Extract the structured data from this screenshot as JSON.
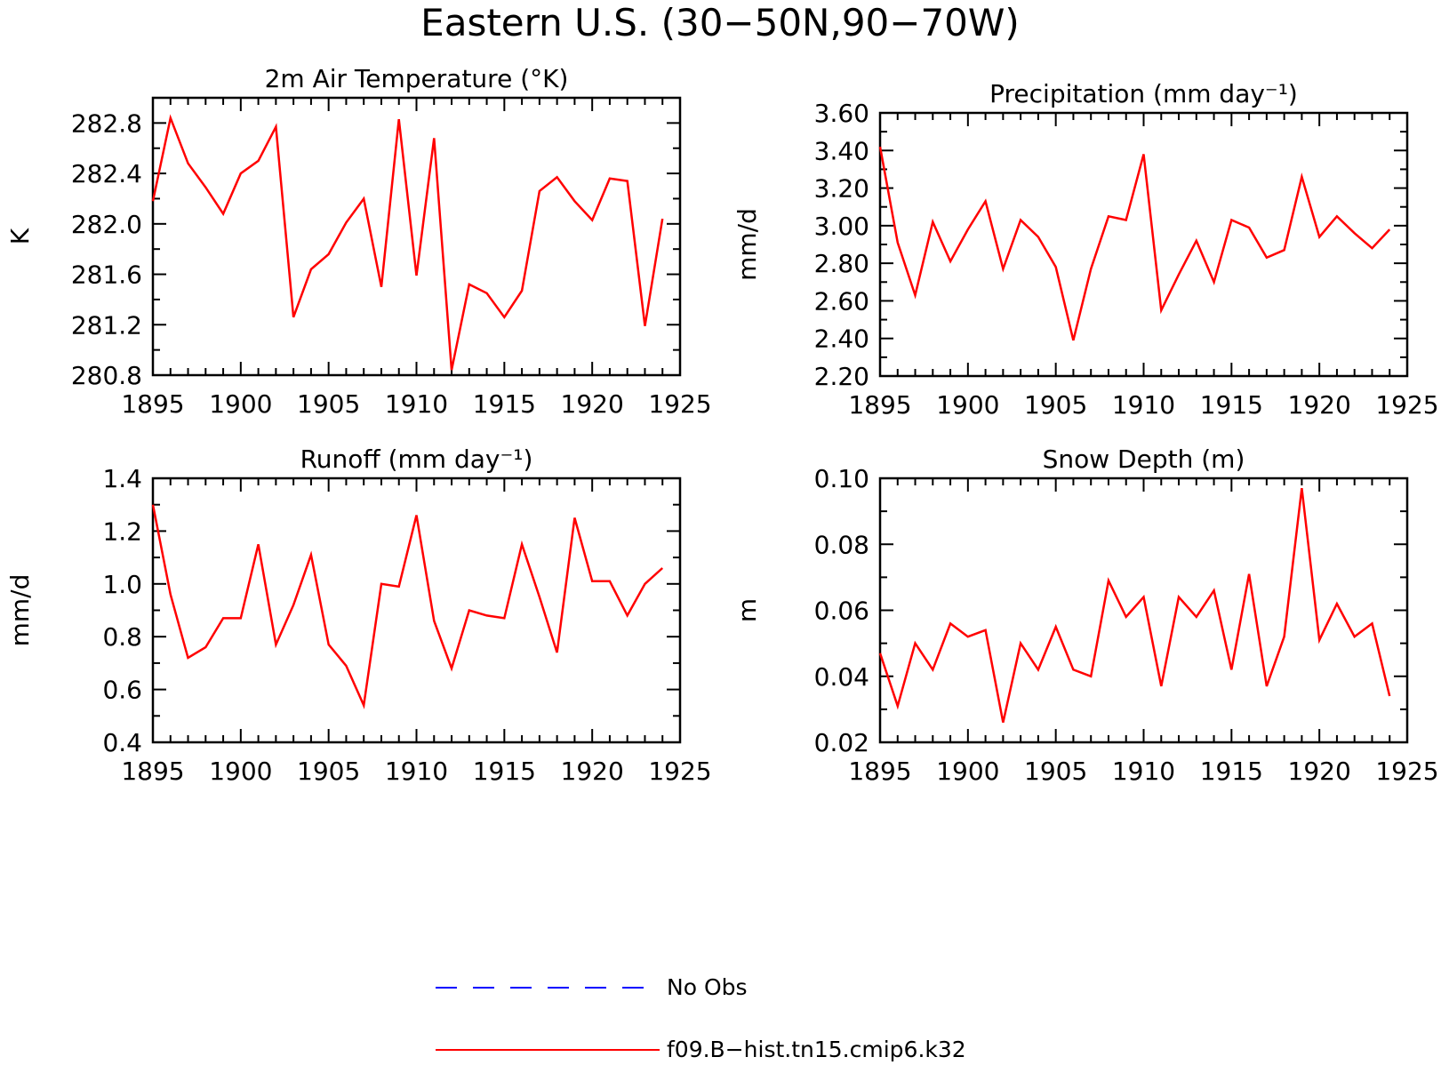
{
  "title": "Eastern U.S. (30−50N,90−70W)",
  "legend": {
    "entries": [
      {
        "label": "No Obs",
        "color": "#0000ff",
        "style": "dashed"
      },
      {
        "label": "f09.B−hist.tn15.cmip6.k32",
        "color": "#ff0000",
        "style": "solid"
      }
    ]
  },
  "chart_data": [
    {
      "type": "line",
      "title": "2m Air Temperature (°K)",
      "ylabel": "K",
      "xlim": [
        1895,
        1925
      ],
      "ylim": [
        280.8,
        283.0
      ],
      "xticks": [
        "1895",
        "1900",
        "1905",
        "1910",
        "1915",
        "1920",
        "1925"
      ],
      "yticks": [
        "280.8",
        "281.2",
        "281.6",
        "282.0",
        "282.4",
        "282.8"
      ],
      "grid": false,
      "x": [
        1895,
        1896,
        1897,
        1898,
        1899,
        1900,
        1901,
        1902,
        1903,
        1904,
        1905,
        1906,
        1907,
        1908,
        1909,
        1910,
        1911,
        1912,
        1913,
        1914,
        1915,
        1916,
        1917,
        1918,
        1919,
        1920,
        1921,
        1922,
        1923,
        1924
      ],
      "series": [
        {
          "name": "f09.B−hist.tn15.cmip6.k32",
          "color": "#ff0000",
          "values": [
            282.18,
            282.84,
            282.48,
            282.29,
            282.08,
            282.4,
            282.5,
            282.77,
            281.26,
            281.64,
            281.76,
            282.01,
            282.2,
            281.5,
            282.83,
            281.59,
            282.68,
            280.84,
            281.52,
            281.45,
            281.26,
            281.47,
            282.26,
            282.37,
            282.18,
            282.03,
            282.36,
            282.34,
            281.19,
            282.04
          ]
        }
      ]
    },
    {
      "type": "line",
      "title": "Precipitation (mm day⁻¹)",
      "ylabel": "mm/d",
      "xlim": [
        1895,
        1925
      ],
      "ylim": [
        2.2,
        3.6
      ],
      "xticks": [
        "1895",
        "1900",
        "1905",
        "1910",
        "1915",
        "1920",
        "1925"
      ],
      "yticks": [
        "2.20",
        "2.40",
        "2.60",
        "2.80",
        "3.00",
        "3.20",
        "3.40",
        "3.60"
      ],
      "grid": false,
      "x": [
        1895,
        1896,
        1897,
        1898,
        1899,
        1900,
        1901,
        1902,
        1903,
        1904,
        1905,
        1906,
        1907,
        1908,
        1909,
        1910,
        1911,
        1912,
        1913,
        1914,
        1915,
        1916,
        1917,
        1918,
        1919,
        1920,
        1921,
        1922,
        1923,
        1924
      ],
      "series": [
        {
          "name": "f09.B−hist.tn15.cmip6.k32",
          "color": "#ff0000",
          "values": [
            3.42,
            2.91,
            2.63,
            3.02,
            2.81,
            2.98,
            3.13,
            2.77,
            3.03,
            2.94,
            2.78,
            2.39,
            2.77,
            3.05,
            3.03,
            3.38,
            2.55,
            2.74,
            2.92,
            2.7,
            3.03,
            2.99,
            2.83,
            2.87,
            3.26,
            2.94,
            3.05,
            2.96,
            2.88,
            2.98
          ]
        }
      ]
    },
    {
      "type": "line",
      "title": "Runoff (mm day⁻¹)",
      "ylabel": "mm/d",
      "xlim": [
        1895,
        1925
      ],
      "ylim": [
        0.4,
        1.4
      ],
      "xticks": [
        "1895",
        "1900",
        "1905",
        "1910",
        "1915",
        "1920",
        "1925"
      ],
      "yticks": [
        "0.4",
        "0.6",
        "0.8",
        "1.0",
        "1.2",
        "1.4"
      ],
      "grid": false,
      "x": [
        1895,
        1896,
        1897,
        1898,
        1899,
        1900,
        1901,
        1902,
        1903,
        1904,
        1905,
        1906,
        1907,
        1908,
        1909,
        1910,
        1911,
        1912,
        1913,
        1914,
        1915,
        1916,
        1917,
        1918,
        1919,
        1920,
        1921,
        1922,
        1923,
        1924
      ],
      "series": [
        {
          "name": "f09.B−hist.tn15.cmip6.k32",
          "color": "#ff0000",
          "values": [
            1.3,
            0.96,
            0.72,
            0.76,
            0.87,
            0.87,
            1.15,
            0.77,
            0.92,
            1.11,
            0.77,
            0.69,
            0.54,
            1.0,
            0.99,
            1.26,
            0.86,
            0.68,
            0.9,
            0.88,
            0.87,
            1.15,
            0.95,
            0.74,
            1.25,
            1.01,
            1.01,
            0.88,
            1.0,
            1.06
          ]
        }
      ]
    },
    {
      "type": "line",
      "title": "Snow Depth (m)",
      "ylabel": "m",
      "xlim": [
        1895,
        1925
      ],
      "ylim": [
        0.02,
        0.1
      ],
      "xticks": [
        "1895",
        "1900",
        "1905",
        "1910",
        "1915",
        "1920",
        "1925"
      ],
      "yticks": [
        "0.02",
        "0.04",
        "0.06",
        "0.08",
        "0.10"
      ],
      "grid": false,
      "x": [
        1895,
        1896,
        1897,
        1898,
        1899,
        1900,
        1901,
        1902,
        1903,
        1904,
        1905,
        1906,
        1907,
        1908,
        1909,
        1910,
        1911,
        1912,
        1913,
        1914,
        1915,
        1916,
        1917,
        1918,
        1919,
        1920,
        1921,
        1922,
        1923,
        1924
      ],
      "series": [
        {
          "name": "f09.B−hist.tn15.cmip6.k32",
          "color": "#ff0000",
          "values": [
            0.047,
            0.031,
            0.05,
            0.042,
            0.056,
            0.052,
            0.054,
            0.026,
            0.05,
            0.042,
            0.055,
            0.042,
            0.04,
            0.069,
            0.058,
            0.064,
            0.037,
            0.064,
            0.058,
            0.066,
            0.042,
            0.071,
            0.037,
            0.052,
            0.097,
            0.051,
            0.062,
            0.052,
            0.056,
            0.034
          ]
        }
      ]
    }
  ]
}
